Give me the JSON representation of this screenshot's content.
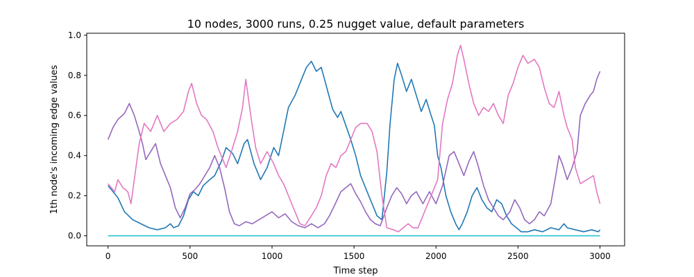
{
  "chart_data": {
    "type": "line",
    "title": "10 nodes, 3000 runs, 0.25 nugget value, default parameters",
    "xlabel": "Time step",
    "ylabel": "1th node's incoming edge values",
    "xlim": [
      -130,
      3150
    ],
    "ylim": [
      -0.05,
      1.01
    ],
    "xticks": [
      0,
      500,
      1000,
      1500,
      2000,
      2500,
      3000
    ],
    "yticks": [
      0.0,
      0.2,
      0.4,
      0.6,
      0.8,
      1.0
    ],
    "xtick_labels": [
      "0",
      "500",
      "1000",
      "1500",
      "2000",
      "2500",
      "3000"
    ],
    "ytick_labels": [
      "0.0",
      "0.2",
      "0.4",
      "0.6",
      "0.8",
      "1.0"
    ],
    "grid": false,
    "series": [
      {
        "color": "#1f77b4",
        "points": [
          [
            0,
            0.25
          ],
          [
            30,
            0.22
          ],
          [
            60,
            0.19
          ],
          [
            100,
            0.12
          ],
          [
            150,
            0.08
          ],
          [
            200,
            0.06
          ],
          [
            250,
            0.04
          ],
          [
            300,
            0.03
          ],
          [
            350,
            0.04
          ],
          [
            380,
            0.06
          ],
          [
            400,
            0.04
          ],
          [
            430,
            0.05
          ],
          [
            460,
            0.1
          ],
          [
            490,
            0.18
          ],
          [
            520,
            0.22
          ],
          [
            550,
            0.2
          ],
          [
            580,
            0.25
          ],
          [
            620,
            0.28
          ],
          [
            650,
            0.3
          ],
          [
            690,
            0.37
          ],
          [
            720,
            0.44
          ],
          [
            760,
            0.41
          ],
          [
            790,
            0.36
          ],
          [
            830,
            0.46
          ],
          [
            850,
            0.48
          ],
          [
            890,
            0.36
          ],
          [
            930,
            0.28
          ],
          [
            970,
            0.34
          ],
          [
            1010,
            0.44
          ],
          [
            1040,
            0.4
          ],
          [
            1060,
            0.48
          ],
          [
            1100,
            0.64
          ],
          [
            1140,
            0.7
          ],
          [
            1180,
            0.78
          ],
          [
            1210,
            0.84
          ],
          [
            1240,
            0.87
          ],
          [
            1270,
            0.82
          ],
          [
            1300,
            0.84
          ],
          [
            1340,
            0.72
          ],
          [
            1370,
            0.63
          ],
          [
            1400,
            0.59
          ],
          [
            1420,
            0.62
          ],
          [
            1450,
            0.55
          ],
          [
            1480,
            0.48
          ],
          [
            1510,
            0.4
          ],
          [
            1540,
            0.3
          ],
          [
            1580,
            0.22
          ],
          [
            1610,
            0.16
          ],
          [
            1640,
            0.1
          ],
          [
            1670,
            0.08
          ],
          [
            1700,
            0.32
          ],
          [
            1720,
            0.56
          ],
          [
            1745,
            0.78
          ],
          [
            1765,
            0.86
          ],
          [
            1790,
            0.8
          ],
          [
            1820,
            0.72
          ],
          [
            1850,
            0.78
          ],
          [
            1880,
            0.7
          ],
          [
            1910,
            0.62
          ],
          [
            1940,
            0.68
          ],
          [
            1970,
            0.6
          ],
          [
            1990,
            0.55
          ],
          [
            2010,
            0.4
          ],
          [
            2030,
            0.34
          ],
          [
            2060,
            0.2
          ],
          [
            2090,
            0.12
          ],
          [
            2120,
            0.06
          ],
          [
            2140,
            0.03
          ],
          [
            2160,
            0.06
          ],
          [
            2190,
            0.12
          ],
          [
            2220,
            0.2
          ],
          [
            2250,
            0.24
          ],
          [
            2280,
            0.18
          ],
          [
            2310,
            0.14
          ],
          [
            2340,
            0.12
          ],
          [
            2370,
            0.18
          ],
          [
            2400,
            0.16
          ],
          [
            2430,
            0.1
          ],
          [
            2460,
            0.06
          ],
          [
            2490,
            0.04
          ],
          [
            2520,
            0.02
          ],
          [
            2560,
            0.02
          ],
          [
            2600,
            0.03
          ],
          [
            2650,
            0.02
          ],
          [
            2700,
            0.04
          ],
          [
            2750,
            0.03
          ],
          [
            2780,
            0.06
          ],
          [
            2800,
            0.04
          ],
          [
            2850,
            0.03
          ],
          [
            2900,
            0.02
          ],
          [
            2950,
            0.03
          ],
          [
            2990,
            0.02
          ],
          [
            3000,
            0.03
          ]
        ]
      },
      {
        "color": "#9467bd",
        "points": [
          [
            0,
            0.48
          ],
          [
            30,
            0.54
          ],
          [
            60,
            0.58
          ],
          [
            100,
            0.61
          ],
          [
            130,
            0.66
          ],
          [
            160,
            0.6
          ],
          [
            190,
            0.52
          ],
          [
            210,
            0.46
          ],
          [
            230,
            0.38
          ],
          [
            260,
            0.42
          ],
          [
            290,
            0.46
          ],
          [
            320,
            0.36
          ],
          [
            350,
            0.3
          ],
          [
            380,
            0.24
          ],
          [
            410,
            0.14
          ],
          [
            440,
            0.09
          ],
          [
            470,
            0.14
          ],
          [
            500,
            0.21
          ],
          [
            530,
            0.23
          ],
          [
            560,
            0.26
          ],
          [
            590,
            0.3
          ],
          [
            620,
            0.34
          ],
          [
            650,
            0.4
          ],
          [
            680,
            0.34
          ],
          [
            710,
            0.24
          ],
          [
            740,
            0.12
          ],
          [
            770,
            0.06
          ],
          [
            800,
            0.05
          ],
          [
            840,
            0.07
          ],
          [
            880,
            0.06
          ],
          [
            920,
            0.08
          ],
          [
            960,
            0.1
          ],
          [
            1000,
            0.12
          ],
          [
            1040,
            0.09
          ],
          [
            1080,
            0.11
          ],
          [
            1120,
            0.07
          ],
          [
            1160,
            0.05
          ],
          [
            1200,
            0.04
          ],
          [
            1240,
            0.06
          ],
          [
            1280,
            0.04
          ],
          [
            1320,
            0.06
          ],
          [
            1350,
            0.1
          ],
          [
            1380,
            0.15
          ],
          [
            1420,
            0.22
          ],
          [
            1450,
            0.24
          ],
          [
            1480,
            0.26
          ],
          [
            1510,
            0.21
          ],
          [
            1540,
            0.17
          ],
          [
            1570,
            0.12
          ],
          [
            1600,
            0.08
          ],
          [
            1630,
            0.06
          ],
          [
            1660,
            0.05
          ],
          [
            1700,
            0.14
          ],
          [
            1730,
            0.2
          ],
          [
            1760,
            0.24
          ],
          [
            1790,
            0.21
          ],
          [
            1820,
            0.16
          ],
          [
            1850,
            0.2
          ],
          [
            1880,
            0.22
          ],
          [
            1920,
            0.16
          ],
          [
            1960,
            0.22
          ],
          [
            2000,
            0.16
          ],
          [
            2040,
            0.25
          ],
          [
            2080,
            0.4
          ],
          [
            2110,
            0.42
          ],
          [
            2140,
            0.36
          ],
          [
            2170,
            0.3
          ],
          [
            2200,
            0.37
          ],
          [
            2230,
            0.42
          ],
          [
            2260,
            0.34
          ],
          [
            2290,
            0.25
          ],
          [
            2320,
            0.18
          ],
          [
            2350,
            0.14
          ],
          [
            2380,
            0.1
          ],
          [
            2410,
            0.08
          ],
          [
            2450,
            0.12
          ],
          [
            2480,
            0.18
          ],
          [
            2510,
            0.14
          ],
          [
            2540,
            0.08
          ],
          [
            2570,
            0.06
          ],
          [
            2600,
            0.08
          ],
          [
            2630,
            0.12
          ],
          [
            2660,
            0.1
          ],
          [
            2700,
            0.16
          ],
          [
            2730,
            0.3
          ],
          [
            2750,
            0.4
          ],
          [
            2770,
            0.36
          ],
          [
            2800,
            0.28
          ],
          [
            2830,
            0.34
          ],
          [
            2860,
            0.42
          ],
          [
            2880,
            0.6
          ],
          [
            2910,
            0.66
          ],
          [
            2940,
            0.7
          ],
          [
            2960,
            0.72
          ],
          [
            2980,
            0.78
          ],
          [
            3000,
            0.82
          ]
        ]
      },
      {
        "color": "#e377c2",
        "points": [
          [
            0,
            0.26
          ],
          [
            20,
            0.24
          ],
          [
            40,
            0.22
          ],
          [
            60,
            0.28
          ],
          [
            90,
            0.24
          ],
          [
            120,
            0.22
          ],
          [
            140,
            0.16
          ],
          [
            160,
            0.28
          ],
          [
            190,
            0.46
          ],
          [
            220,
            0.56
          ],
          [
            260,
            0.52
          ],
          [
            300,
            0.6
          ],
          [
            340,
            0.52
          ],
          [
            380,
            0.56
          ],
          [
            420,
            0.58
          ],
          [
            460,
            0.62
          ],
          [
            490,
            0.72
          ],
          [
            510,
            0.76
          ],
          [
            540,
            0.66
          ],
          [
            570,
            0.6
          ],
          [
            600,
            0.58
          ],
          [
            640,
            0.52
          ],
          [
            670,
            0.44
          ],
          [
            700,
            0.38
          ],
          [
            720,
            0.34
          ],
          [
            760,
            0.44
          ],
          [
            790,
            0.52
          ],
          [
            820,
            0.64
          ],
          [
            840,
            0.78
          ],
          [
            870,
            0.6
          ],
          [
            900,
            0.44
          ],
          [
            930,
            0.36
          ],
          [
            970,
            0.42
          ],
          [
            1010,
            0.36
          ],
          [
            1040,
            0.3
          ],
          [
            1070,
            0.26
          ],
          [
            1100,
            0.2
          ],
          [
            1130,
            0.14
          ],
          [
            1170,
            0.06
          ],
          [
            1200,
            0.05
          ],
          [
            1240,
            0.1
          ],
          [
            1270,
            0.14
          ],
          [
            1300,
            0.2
          ],
          [
            1330,
            0.3
          ],
          [
            1360,
            0.36
          ],
          [
            1390,
            0.34
          ],
          [
            1420,
            0.4
          ],
          [
            1450,
            0.42
          ],
          [
            1480,
            0.48
          ],
          [
            1510,
            0.54
          ],
          [
            1540,
            0.56
          ],
          [
            1580,
            0.56
          ],
          [
            1610,
            0.52
          ],
          [
            1640,
            0.42
          ],
          [
            1670,
            0.2
          ],
          [
            1700,
            0.04
          ],
          [
            1740,
            0.03
          ],
          [
            1770,
            0.02
          ],
          [
            1800,
            0.04
          ],
          [
            1830,
            0.06
          ],
          [
            1860,
            0.04
          ],
          [
            1890,
            0.04
          ],
          [
            1920,
            0.1
          ],
          [
            1950,
            0.16
          ],
          [
            1980,
            0.22
          ],
          [
            2010,
            0.28
          ],
          [
            2040,
            0.56
          ],
          [
            2070,
            0.68
          ],
          [
            2100,
            0.76
          ],
          [
            2130,
            0.9
          ],
          [
            2150,
            0.95
          ],
          [
            2170,
            0.88
          ],
          [
            2200,
            0.76
          ],
          [
            2230,
            0.66
          ],
          [
            2260,
            0.6
          ],
          [
            2290,
            0.64
          ],
          [
            2320,
            0.62
          ],
          [
            2350,
            0.66
          ],
          [
            2380,
            0.6
          ],
          [
            2410,
            0.56
          ],
          [
            2440,
            0.7
          ],
          [
            2470,
            0.76
          ],
          [
            2500,
            0.84
          ],
          [
            2530,
            0.9
          ],
          [
            2560,
            0.86
          ],
          [
            2600,
            0.88
          ],
          [
            2630,
            0.84
          ],
          [
            2660,
            0.74
          ],
          [
            2690,
            0.66
          ],
          [
            2720,
            0.64
          ],
          [
            2750,
            0.72
          ],
          [
            2780,
            0.6
          ],
          [
            2800,
            0.54
          ],
          [
            2830,
            0.48
          ],
          [
            2850,
            0.34
          ],
          [
            2880,
            0.26
          ],
          [
            2920,
            0.28
          ],
          [
            2960,
            0.3
          ],
          [
            2980,
            0.22
          ],
          [
            3000,
            0.16
          ]
        ]
      },
      {
        "color": "#17becf",
        "points": [
          [
            0,
            0.0
          ],
          [
            3000,
            0.0
          ]
        ]
      }
    ]
  }
}
